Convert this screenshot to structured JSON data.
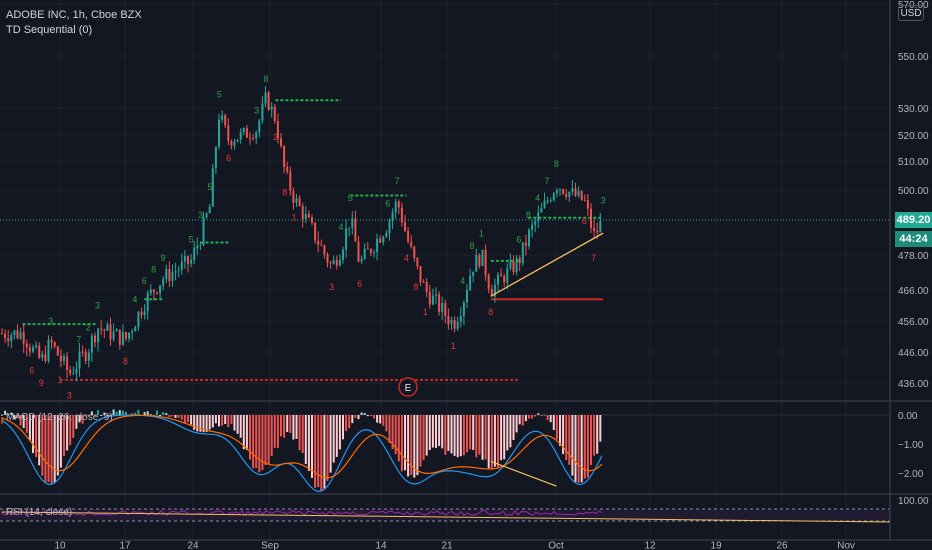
{
  "header": {
    "symbol_line": "ADOBE INC, 1h, Cboe BZX",
    "indicator": "TD Sequential (0)",
    "currency_badge": "USD"
  },
  "price_tags": {
    "last_price": "489.20",
    "countdown": "44:24",
    "last_color": "#22ab94",
    "countdown_color": "#1e8c78"
  },
  "chart_data": [
    {
      "type": "candlestick",
      "title": "ADOBE INC, 1h, Cboe BZX",
      "indicator": "TD Sequential (0)",
      "x_ticks": [
        "10",
        "17",
        "24",
        "Sep",
        "14",
        "21",
        "Oct",
        "12",
        "19",
        "26",
        "Nov"
      ],
      "y_ticks": [
        570,
        550,
        530,
        520,
        510,
        500,
        489.2,
        478,
        466,
        456,
        446,
        436
      ],
      "last_price": 489.2,
      "close_path": [
        {
          "t": "Aug 6",
          "v": 452
        },
        {
          "t": "Aug 7",
          "v": 447
        },
        {
          "t": "Aug 8",
          "v": 443
        },
        {
          "t": "Aug 9",
          "v": 449
        },
        {
          "t": "Aug 10",
          "v": 444
        },
        {
          "t": "Aug 11",
          "v": 439
        },
        {
          "t": "Aug 12",
          "v": 443
        },
        {
          "t": "Aug 13",
          "v": 447
        },
        {
          "t": "Aug 14",
          "v": 454
        },
        {
          "t": "Aug 17",
          "v": 450
        },
        {
          "t": "Aug 18",
          "v": 456
        },
        {
          "t": "Aug 19",
          "v": 462
        },
        {
          "t": "Aug 20",
          "v": 466
        },
        {
          "t": "Aug 21",
          "v": 470
        },
        {
          "t": "Aug 24",
          "v": 476
        },
        {
          "t": "Aug 25",
          "v": 484
        },
        {
          "t": "Aug 26",
          "v": 494
        },
        {
          "t": "Aug 27",
          "v": 528
        },
        {
          "t": "Aug 28",
          "v": 518
        },
        {
          "t": "Aug 31",
          "v": 522
        },
        {
          "t": "Sep 1",
          "v": 534
        },
        {
          "t": "Sep 2",
          "v": 526
        },
        {
          "t": "Sep 3",
          "v": 506
        },
        {
          "t": "Sep 4",
          "v": 497
        },
        {
          "t": "Sep 8",
          "v": 474
        },
        {
          "t": "Sep 9",
          "v": 480
        },
        {
          "t": "Sep 10",
          "v": 490
        },
        {
          "t": "Sep 11",
          "v": 475
        },
        {
          "t": "Sep 14",
          "v": 488
        },
        {
          "t": "Sep 15",
          "v": 496
        },
        {
          "t": "Sep 16",
          "v": 484
        },
        {
          "t": "Sep 17",
          "v": 474
        },
        {
          "t": "Sep 18",
          "v": 466
        },
        {
          "t": "Sep 21",
          "v": 455
        },
        {
          "t": "Sep 22",
          "v": 462
        },
        {
          "t": "Sep 23",
          "v": 474
        },
        {
          "t": "Sep 24",
          "v": 478
        },
        {
          "t": "Sep 25",
          "v": 466
        },
        {
          "t": "Sep 28",
          "v": 476
        },
        {
          "t": "Sep 29",
          "v": 484
        },
        {
          "t": "Sep 30",
          "v": 490
        },
        {
          "t": "Oct 1",
          "v": 496
        },
        {
          "t": "Oct 2",
          "v": 502
        },
        {
          "t": "Oct 5",
          "v": 496
        },
        {
          "t": "Oct 6",
          "v": 484
        },
        {
          "t": "Oct 7",
          "v": 489.2
        }
      ],
      "levels": [
        {
          "y": 455,
          "x0": "Aug 6",
          "x1": "Aug 14",
          "color": "#22b14c",
          "style": "dashed"
        },
        {
          "y": 463,
          "x0": "Aug 19",
          "x1": "Aug 21",
          "color": "#22b14c",
          "style": "dashed"
        },
        {
          "y": 482,
          "x0": "Aug 25",
          "x1": "Aug 28",
          "color": "#22b14c",
          "style": "dashed"
        },
        {
          "y": 533,
          "x0": "Sep 2",
          "x1": "Sep 9",
          "color": "#22b14c",
          "style": "dashed"
        },
        {
          "y": 498,
          "x0": "Sep 10",
          "x1": "Sep 16",
          "color": "#22b14c",
          "style": "dashed"
        },
        {
          "y": 476,
          "x0": "Sep 25",
          "x1": "Sep 28",
          "color": "#22b14c",
          "style": "dashed"
        },
        {
          "y": 490,
          "x0": "Sep 29",
          "x1": "Oct 7",
          "color": "#22b14c",
          "style": "dashed"
        },
        {
          "y": 437,
          "x0": "Aug 10",
          "x1": "Sep 28",
          "color": "#c62828",
          "style": "dashed"
        },
        {
          "y": 463,
          "x0": "Sep 25",
          "x1": "Oct 7",
          "color": "#c62828",
          "style": "solid"
        }
      ],
      "trendline": {
        "p0": {
          "t": "Sep 25",
          "v": 464
        },
        "p1": {
          "t": "Oct 7",
          "v": 485
        },
        "color": "#f3c25a"
      },
      "earnings_marker": "E"
    },
    {
      "type": "histogram",
      "title": "MACD (12, 26, close, 9)",
      "y_ticks": [
        0.0,
        -1.0,
        -2.0
      ],
      "tick_labels": [
        "0.00",
        "−1.00",
        "−2.00"
      ],
      "divergence_line": {
        "p0": {
          "t": "Sep 25",
          "v": -1.6
        },
        "p1": {
          "t": "Oct 2",
          "v": -2.45
        },
        "color": "#f3c25a"
      }
    },
    {
      "type": "line",
      "title": "RSI (14, close)",
      "y_ticks": [
        100.0
      ],
      "tick_labels": [
        "100.00"
      ]
    }
  ]
}
